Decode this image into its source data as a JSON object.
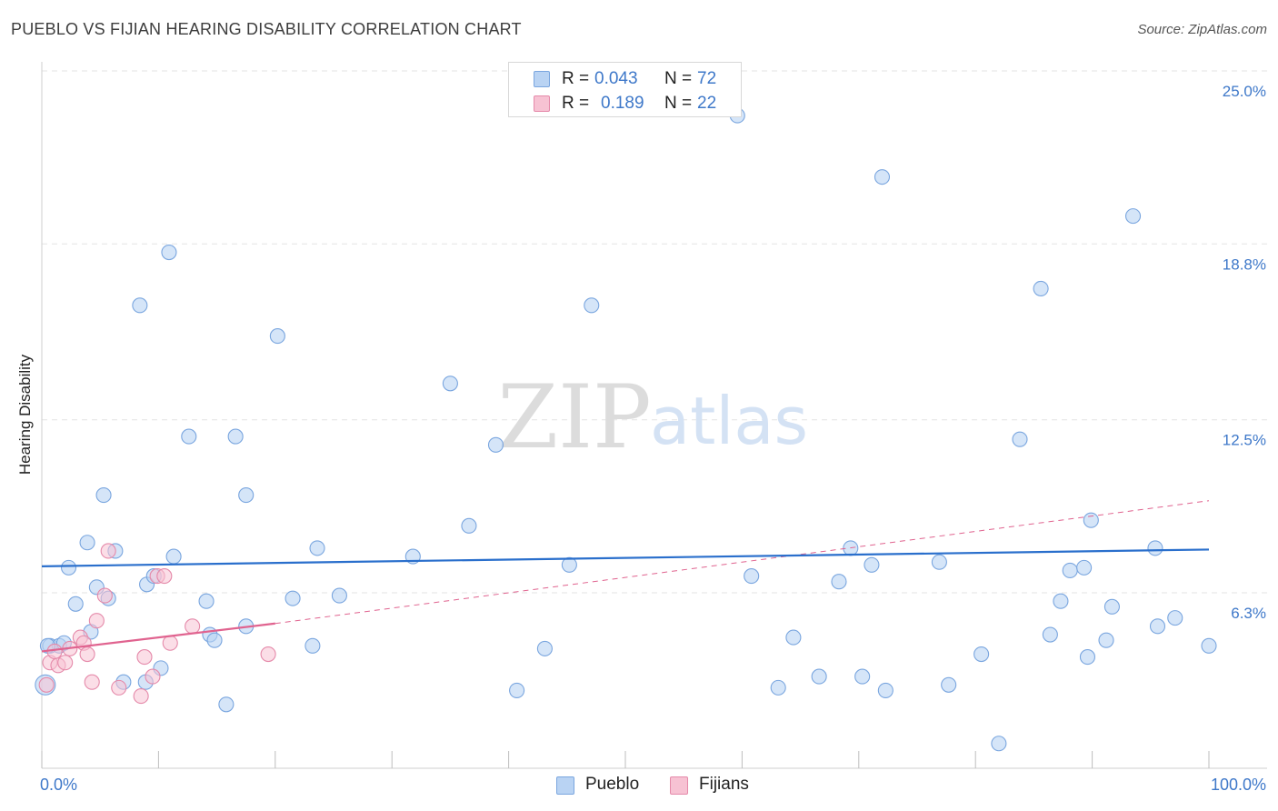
{
  "title": "PUEBLO VS FIJIAN HEARING DISABILITY CORRELATION CHART",
  "source": "Source: ZipAtlas.com",
  "watermark": {
    "zip": "ZIP",
    "atlas": "atlas"
  },
  "colors": {
    "pueblo_fill": "#b9d3f3",
    "pueblo_stroke": "#7aa6df",
    "pueblo_line": "#2a6fcc",
    "fijian_fill": "#f7c2d3",
    "fijian_stroke": "#e58aaa",
    "fijian_line": "#e0638f",
    "grid": "#e3e3e3",
    "axis_text": "#3e78c9"
  },
  "legend_top": {
    "rows": [
      {
        "series": "Pueblo",
        "r_label": "R =",
        "r_value": "0.043",
        "n_label": "N =",
        "n_value": "72"
      },
      {
        "series": "Fijians",
        "r_label": "R =",
        "r_value": "0.189",
        "n_label": "N =",
        "n_value": "22"
      }
    ]
  },
  "legend_bottom": {
    "items": [
      "Pueblo",
      "Fijians"
    ]
  },
  "chart_data": {
    "type": "scatter",
    "title": "PUEBLO VS FIJIAN HEARING DISABILITY CORRELATION CHART",
    "xlabel": "",
    "ylabel": "Hearing Disability",
    "xlim": [
      0,
      100
    ],
    "ylim": [
      0,
      26.0
    ],
    "x_tick_labels": [
      {
        "value": 0,
        "label": "0.0%"
      },
      {
        "value": 100,
        "label": "100.0%"
      }
    ],
    "x_minor_ticks": [
      0,
      10,
      20,
      30,
      40,
      50,
      60,
      70,
      80,
      90,
      100
    ],
    "y_ticks": [
      {
        "value": 6.3,
        "label": "6.3%"
      },
      {
        "value": 12.5,
        "label": "12.5%"
      },
      {
        "value": 18.8,
        "label": "18.8%"
      },
      {
        "value": 25.0,
        "label": "25.0%"
      }
    ],
    "grid": true,
    "series": [
      {
        "name": "Pueblo",
        "r": 0.043,
        "n": 72,
        "trend": {
          "x": [
            0,
            100
          ],
          "y": [
            7.25,
            7.85
          ],
          "style": "solid"
        },
        "points": [
          {
            "x": 0.3,
            "y": 3.0
          },
          {
            "x": 0.7,
            "y": 4.4
          },
          {
            "x": 1.5,
            "y": 4.4
          },
          {
            "x": 1.9,
            "y": 4.5
          },
          {
            "x": 2.3,
            "y": 7.2
          },
          {
            "x": 2.9,
            "y": 5.9
          },
          {
            "x": 4.2,
            "y": 4.9
          },
          {
            "x": 3.9,
            "y": 8.1
          },
          {
            "x": 4.7,
            "y": 6.5
          },
          {
            "x": 5.3,
            "y": 9.8
          },
          {
            "x": 6.3,
            "y": 7.8
          },
          {
            "x": 5.7,
            "y": 6.1
          },
          {
            "x": 7.0,
            "y": 3.1
          },
          {
            "x": 8.4,
            "y": 16.6
          },
          {
            "x": 9.0,
            "y": 6.6
          },
          {
            "x": 9.6,
            "y": 6.9
          },
          {
            "x": 8.9,
            "y": 3.1
          },
          {
            "x": 10.2,
            "y": 3.6
          },
          {
            "x": 10.9,
            "y": 18.5
          },
          {
            "x": 11.3,
            "y": 7.6
          },
          {
            "x": 12.6,
            "y": 11.9
          },
          {
            "x": 14.1,
            "y": 6.0
          },
          {
            "x": 14.4,
            "y": 4.8
          },
          {
            "x": 14.8,
            "y": 4.6
          },
          {
            "x": 15.8,
            "y": 2.3
          },
          {
            "x": 16.6,
            "y": 11.9
          },
          {
            "x": 17.5,
            "y": 9.8
          },
          {
            "x": 17.5,
            "y": 5.1
          },
          {
            "x": 20.2,
            "y": 15.5
          },
          {
            "x": 21.5,
            "y": 6.1
          },
          {
            "x": 23.2,
            "y": 4.4
          },
          {
            "x": 23.6,
            "y": 7.9
          },
          {
            "x": 25.5,
            "y": 6.2
          },
          {
            "x": 31.8,
            "y": 7.6
          },
          {
            "x": 35.0,
            "y": 13.8
          },
          {
            "x": 36.6,
            "y": 8.7
          },
          {
            "x": 38.9,
            "y": 11.6
          },
          {
            "x": 40.7,
            "y": 2.8
          },
          {
            "x": 43.1,
            "y": 4.3
          },
          {
            "x": 45.2,
            "y": 7.3
          },
          {
            "x": 47.1,
            "y": 16.6
          },
          {
            "x": 59.6,
            "y": 23.4
          },
          {
            "x": 60.8,
            "y": 6.9
          },
          {
            "x": 63.1,
            "y": 2.9
          },
          {
            "x": 64.4,
            "y": 4.7
          },
          {
            "x": 66.6,
            "y": 3.3
          },
          {
            "x": 68.3,
            "y": 6.7
          },
          {
            "x": 69.3,
            "y": 7.9
          },
          {
            "x": 70.3,
            "y": 3.3
          },
          {
            "x": 71.1,
            "y": 7.3
          },
          {
            "x": 72.0,
            "y": 21.2
          },
          {
            "x": 72.3,
            "y": 2.8
          },
          {
            "x": 76.9,
            "y": 7.4
          },
          {
            "x": 77.7,
            "y": 3.0
          },
          {
            "x": 80.5,
            "y": 4.1
          },
          {
            "x": 82.0,
            "y": 0.9
          },
          {
            "x": 83.8,
            "y": 11.8
          },
          {
            "x": 85.6,
            "y": 17.2
          },
          {
            "x": 86.4,
            "y": 4.8
          },
          {
            "x": 87.3,
            "y": 6.0
          },
          {
            "x": 88.1,
            "y": 7.1
          },
          {
            "x": 89.3,
            "y": 7.2
          },
          {
            "x": 89.6,
            "y": 4.0
          },
          {
            "x": 89.9,
            "y": 8.9
          },
          {
            "x": 91.2,
            "y": 4.6
          },
          {
            "x": 91.7,
            "y": 5.8
          },
          {
            "x": 93.5,
            "y": 19.8
          },
          {
            "x": 95.4,
            "y": 7.9
          },
          {
            "x": 95.6,
            "y": 5.1
          },
          {
            "x": 97.1,
            "y": 5.4
          },
          {
            "x": 100.0,
            "y": 4.4
          },
          {
            "x": 0.5,
            "y": 4.4
          }
        ]
      },
      {
        "name": "Fijians",
        "r": 0.189,
        "n": 22,
        "trend_solid": {
          "x": [
            0,
            20
          ],
          "y": [
            4.2,
            5.2
          ]
        },
        "trend_dashed": {
          "x": [
            20,
            100
          ],
          "y": [
            5.2,
            9.6
          ]
        },
        "points": [
          {
            "x": 0.4,
            "y": 3.0
          },
          {
            "x": 0.7,
            "y": 3.8
          },
          {
            "x": 1.4,
            "y": 3.7
          },
          {
            "x": 2.0,
            "y": 3.8
          },
          {
            "x": 2.4,
            "y": 4.3
          },
          {
            "x": 3.3,
            "y": 4.7
          },
          {
            "x": 3.6,
            "y": 4.5
          },
          {
            "x": 3.9,
            "y": 4.1
          },
          {
            "x": 4.3,
            "y": 3.1
          },
          {
            "x": 4.7,
            "y": 5.3
          },
          {
            "x": 5.4,
            "y": 6.2
          },
          {
            "x": 5.7,
            "y": 7.8
          },
          {
            "x": 6.6,
            "y": 2.9
          },
          {
            "x": 8.5,
            "y": 2.6
          },
          {
            "x": 8.8,
            "y": 4.0
          },
          {
            "x": 9.5,
            "y": 3.3
          },
          {
            "x": 9.9,
            "y": 6.9
          },
          {
            "x": 10.5,
            "y": 6.9
          },
          {
            "x": 11.0,
            "y": 4.5
          },
          {
            "x": 12.9,
            "y": 5.1
          },
          {
            "x": 19.4,
            "y": 4.1
          },
          {
            "x": 1.1,
            "y": 4.2
          }
        ]
      }
    ]
  }
}
